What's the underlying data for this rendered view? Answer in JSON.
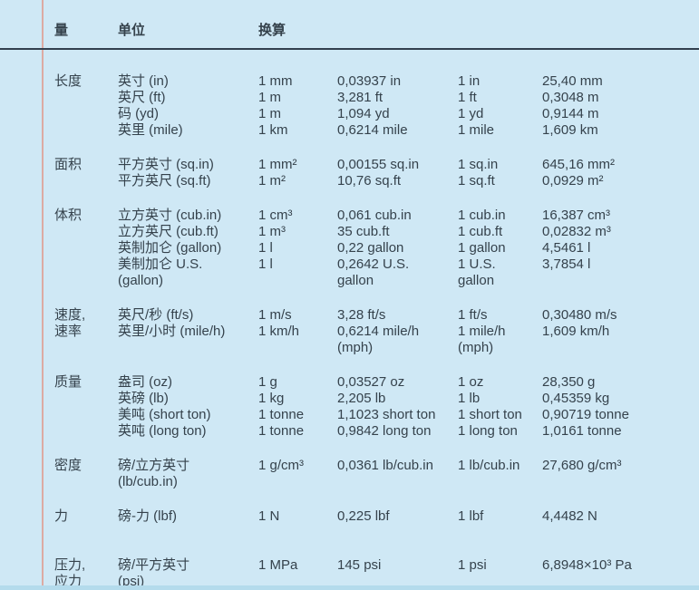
{
  "page": {
    "background_color": "#cfe8f5",
    "text_color": "#35424c",
    "rule_color": "#323f4e",
    "accent_line_color": "#dcaba3",
    "bottom_strip_color": "#b4dbec"
  },
  "header": {
    "quantity_label": "量",
    "unit_label": "单位",
    "conversion_label": "换算"
  },
  "sections": [
    {
      "quantity": [
        "长度"
      ],
      "units": [
        "英寸 (in)",
        "英尺 (ft)",
        "码 (yd)",
        "英里 (mile)"
      ],
      "metric_unit": [
        "1 mm",
        "1 m",
        "1 m",
        "1 km"
      ],
      "to_imperial": [
        "0,03937 in",
        "3,281 ft",
        "1,094 yd",
        "0,6214 mile"
      ],
      "imperial_unit": [
        "1 in",
        "1 ft",
        "1 yd",
        "1 mile"
      ],
      "to_metric": [
        "25,40 mm",
        "0,3048 m",
        "0,9144 m",
        "1,609 km"
      ]
    },
    {
      "quantity": [
        "面积"
      ],
      "units": [
        "平方英寸 (sq.in)",
        "平方英尺 (sq.ft)"
      ],
      "metric_unit": [
        "1 mm²",
        "1 m²"
      ],
      "to_imperial": [
        "0,00155 sq.in",
        "10,76 sq.ft"
      ],
      "imperial_unit": [
        "1 sq.in",
        "1 sq.ft"
      ],
      "to_metric": [
        "645,16 mm²",
        "0,0929 m²"
      ]
    },
    {
      "quantity": [
        "体积"
      ],
      "units": [
        "立方英寸 (cub.in)",
        "立方英尺 (cub.ft)",
        "英制加仑 (gallon)",
        "美制加仑 U.S.",
        "(gallon)"
      ],
      "metric_unit": [
        "1 cm³",
        "1 m³",
        "1 l",
        "1 l"
      ],
      "to_imperial": [
        "0,061 cub.in",
        "35 cub.ft",
        "0,22 gallon",
        "0,2642 U.S.",
        "gallon"
      ],
      "imperial_unit": [
        "1 cub.in",
        "1 cub.ft",
        "1 gallon",
        "1 U.S.",
        "gallon"
      ],
      "to_metric": [
        "16,387 cm³",
        "0,02832 m³",
        "4,5461 l",
        "3,7854 l"
      ]
    },
    {
      "quantity": [
        "速度,",
        "速率"
      ],
      "units": [
        "英尺/秒 (ft/s)",
        "英里/小时 (mile/h)"
      ],
      "metric_unit": [
        "1 m/s",
        "1 km/h"
      ],
      "to_imperial": [
        "3,28 ft/s",
        "0,6214 mile/h",
        "(mph)"
      ],
      "imperial_unit": [
        "1 ft/s",
        "1 mile/h",
        "(mph)"
      ],
      "to_metric": [
        "0,30480 m/s",
        "1,609 km/h"
      ]
    },
    {
      "quantity": [
        "质量"
      ],
      "units": [
        "盎司 (oz)",
        "英磅 (lb)",
        "美吨 (short ton)",
        "英吨 (long ton)"
      ],
      "metric_unit": [
        "1 g",
        "1 kg",
        "1 tonne",
        "1 tonne"
      ],
      "to_imperial": [
        "0,03527 oz",
        "2,205 lb",
        "1,1023 short ton",
        "0,9842 long ton"
      ],
      "imperial_unit": [
        "1 oz",
        "1 lb",
        "1 short ton",
        "1 long ton"
      ],
      "to_metric": [
        "28,350 g",
        "0,45359 kg",
        "0,90719 tonne",
        "1,0161 tonne"
      ]
    },
    {
      "quantity": [
        "密度"
      ],
      "units": [
        "磅/立方英寸",
        "(lb/cub.in)"
      ],
      "metric_unit": [
        "1 g/cm³"
      ],
      "to_imperial": [
        "0,0361 lb/cub.in"
      ],
      "imperial_unit": [
        "1 lb/cub.in"
      ],
      "to_metric": [
        "27,680 g/cm³"
      ]
    },
    {
      "quantity": [
        "力"
      ],
      "units": [
        "磅-力 (lbf)"
      ],
      "metric_unit": [
        "1 N"
      ],
      "to_imperial": [
        "0,225 lbf"
      ],
      "imperial_unit": [
        "1 lbf"
      ],
      "to_metric": [
        "4,4482 N"
      ]
    },
    {
      "quantity": [
        "压力,",
        "应力"
      ],
      "units": [
        "磅/平方英寸",
        "(psi)"
      ],
      "metric_unit": [
        "1 MPa"
      ],
      "to_imperial": [
        "145 psi"
      ],
      "imperial_unit": [
        "1 psi"
      ],
      "to_metric": [
        "6,8948×10³ Pa"
      ]
    }
  ]
}
